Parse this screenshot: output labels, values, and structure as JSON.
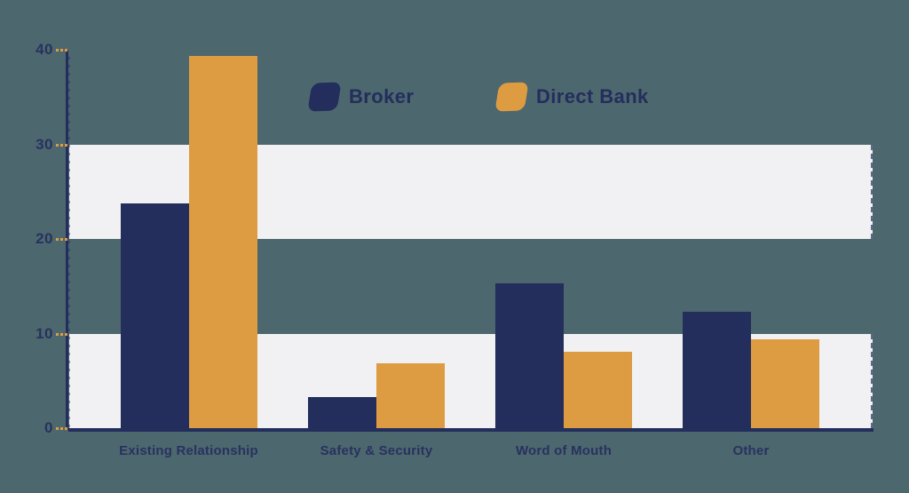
{
  "chart_data": {
    "type": "bar",
    "title": "",
    "xlabel": "",
    "ylabel": "",
    "categories": [
      "Existing Relationship",
      "Safety & Security",
      "Word of Mouth",
      "Other"
    ],
    "series": [
      {
        "name": "Broker",
        "color": "#232E5C",
        "values": [
          23.8,
          3.3,
          15.3,
          12.3
        ]
      },
      {
        "name": "Direct Bank",
        "color": "#DE9C42",
        "values": [
          39.3,
          6.9,
          8.1,
          9.4
        ]
      }
    ],
    "ylim": [
      0,
      40
    ],
    "yticks": [
      0,
      10,
      20,
      30,
      40
    ],
    "shaded_bands": [
      [
        0,
        10
      ],
      [
        20,
        30
      ]
    ],
    "grid": "horizontal-bands",
    "legend_position": "top-center"
  },
  "colors": {
    "background": "#4D676E",
    "broker": "#232E5C",
    "direct_bank": "#DE9C42",
    "band_fill": "#F1F1F3",
    "axis": "#232E5C",
    "tick_dash": "#DE9C42",
    "label_text": "#28325F"
  }
}
